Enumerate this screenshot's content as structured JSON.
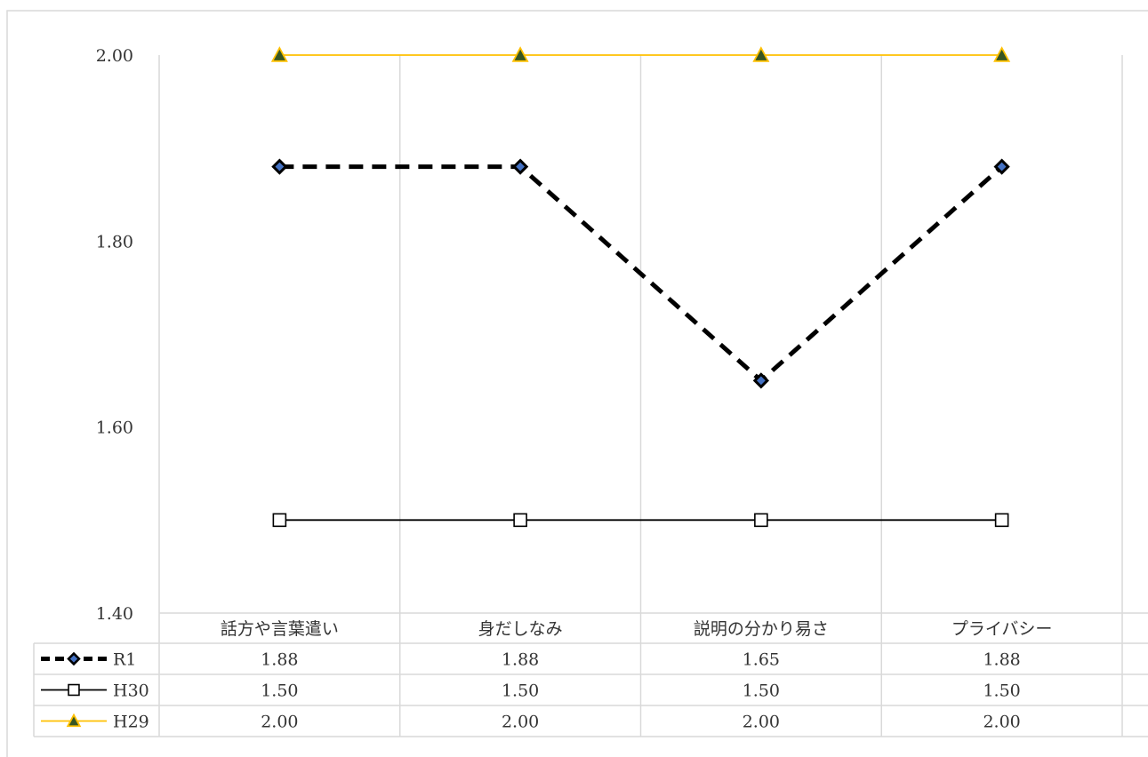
{
  "chart_data": {
    "type": "line",
    "categories": [
      "話方や言葉遣い",
      "身だしなみ",
      "説明の分かり易さ",
      "プライバシー"
    ],
    "series": [
      {
        "name": "R1",
        "values": [
          1.88,
          1.88,
          1.65,
          1.88
        ],
        "color": "#000000",
        "line_style": "dashed",
        "marker": "diamond",
        "marker_fill": "#4472c4",
        "value_labels": [
          "1.88",
          "1.88",
          "1.65",
          "1.88"
        ]
      },
      {
        "name": "H30",
        "values": [
          1.5,
          1.5,
          1.5,
          1.5
        ],
        "color": "#000000",
        "line_style": "solid",
        "marker": "square",
        "marker_fill": "#ffffff",
        "value_labels": [
          "1.50",
          "1.50",
          "1.50",
          "1.50"
        ]
      },
      {
        "name": "H29",
        "values": [
          2.0,
          2.0,
          2.0,
          2.0
        ],
        "color": "#ffc000",
        "line_style": "solid",
        "marker": "triangle",
        "marker_fill": "#375623",
        "value_labels": [
          "2.00",
          "2.00",
          "2.00",
          "2.00"
        ]
      }
    ],
    "ylim": [
      1.4,
      2.0
    ],
    "yticks": [
      "1.40",
      "1.60",
      "1.80",
      "2.00"
    ],
    "grid": "vertical",
    "data_table": true,
    "colors": {
      "grid": "#d9d9d9",
      "text": "#333333",
      "border": "#d9d9d9"
    }
  }
}
